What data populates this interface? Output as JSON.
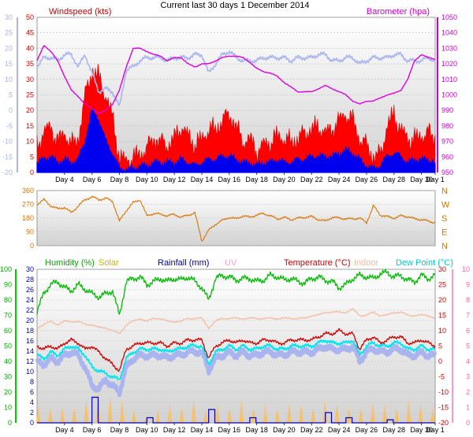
{
  "title": "Current last 30 days 1 December 2014",
  "x_ticks": [
    "Day 4",
    "Day 6",
    "Day 8",
    "Day 10",
    "Day 12",
    "Day 14",
    "Day 16",
    "Day 18",
    "Day 20",
    "Day 22",
    "Day 24",
    "Day 26",
    "Day 28",
    "Day 30",
    "Day 1"
  ],
  "colors": {
    "windspeed": "#dd0000",
    "wind_gust": "#ff0000",
    "wind_avg": "#0000ee",
    "temp_left_axis": "#aab4ee",
    "barometer": "#dd00dd",
    "direction": "#d97400",
    "humidity": "#00bb00",
    "solar": "#d4c400",
    "rainfall": "#0000aa",
    "uv": "#ff99cc",
    "temperature": "#cc0000",
    "indoor": "#f5b89a",
    "dewpoint": "#00e5ee",
    "apparent": "#aab4ee"
  },
  "chart_data": [
    {
      "type": "line",
      "panel": "wind-barometer",
      "series_labels": {
        "wind": "Windspeed (kts)",
        "baro": "Barometer (hpa)"
      },
      "left_axis": {
        "ylim": [
          0,
          50
        ],
        "ticks": [
          "0",
          "5",
          "10",
          "15",
          "20",
          "25",
          "30",
          "35",
          "40",
          "45",
          "50"
        ]
      },
      "far_left_axis": {
        "ylim": [
          -20,
          30
        ],
        "ticks": [
          "-20",
          "-15",
          "-10",
          "-5",
          "0",
          "5",
          "10",
          "15",
          "20",
          "25",
          "30"
        ]
      },
      "right_axis": {
        "ylim": [
          950,
          1050
        ],
        "ticks": [
          "950",
          "960",
          "970",
          "980",
          "990",
          "1000",
          "1010",
          "1020",
          "1030",
          "1040",
          "1050"
        ]
      },
      "x_range": [
        2,
        31
      ],
      "x": [
        2,
        2.5,
        3,
        3.5,
        4,
        4.5,
        5,
        5.5,
        6,
        6.5,
        7,
        7.5,
        8,
        8.5,
        9,
        9.5,
        10,
        10.5,
        11,
        11.5,
        12,
        12.5,
        13,
        13.5,
        14,
        14.5,
        15,
        15.5,
        16,
        16.5,
        17,
        17.5,
        18,
        18.5,
        19,
        19.5,
        20,
        20.5,
        21,
        21.5,
        22,
        22.5,
        23,
        23.5,
        24,
        24.5,
        25,
        25.5,
        26,
        26.5,
        27,
        27.5,
        28,
        28.5,
        29,
        29.5,
        30,
        30.5,
        31
      ],
      "wind_gust": [
        8,
        12,
        14,
        9,
        12,
        8,
        10,
        24,
        32,
        30,
        24,
        17,
        4,
        3,
        4,
        5,
        7,
        10,
        9,
        8,
        10,
        14,
        11,
        8,
        10,
        13,
        13,
        16,
        18,
        14,
        9,
        10,
        6,
        8,
        9,
        11,
        10,
        9,
        10,
        12,
        13,
        14,
        12,
        13,
        16,
        18,
        16,
        10,
        8,
        4,
        5,
        14,
        18,
        13,
        10,
        10,
        11,
        12,
        10
      ],
      "wind_avg": [
        3,
        4,
        5,
        3,
        4,
        3,
        4,
        10,
        20,
        17,
        10,
        6,
        1,
        1,
        1,
        2,
        2,
        3,
        3,
        3,
        3,
        4,
        3,
        2,
        3,
        4,
        4,
        5,
        5,
        4,
        3,
        3,
        2,
        3,
        3,
        4,
        3,
        3,
        4,
        4,
        5,
        5,
        5,
        5,
        6,
        7,
        6,
        4,
        2,
        1,
        2,
        5,
        6,
        5,
        3,
        4,
        4,
        4,
        3
      ],
      "temp_line": [
        14,
        17,
        17,
        16,
        18,
        18,
        14,
        18,
        12,
        6,
        7,
        6,
        1,
        13,
        14,
        16,
        17,
        17,
        17,
        16,
        17,
        17,
        17,
        18,
        18,
        12,
        15,
        18,
        19,
        17,
        16,
        16,
        16,
        17,
        17,
        17,
        17,
        16,
        17,
        17,
        17,
        18,
        18,
        16,
        16,
        17,
        17,
        15,
        16,
        17,
        17,
        17,
        18,
        18,
        16,
        16,
        16,
        17,
        16
      ],
      "barometer": [
        1022,
        1032,
        1028,
        1022,
        1012,
        1003,
        999,
        994,
        991,
        988,
        990,
        994,
        1003,
        1018,
        1030,
        1030,
        1028,
        1026,
        1025,
        1022,
        1024,
        1024,
        1020,
        1018,
        1020,
        1020,
        1022,
        1024,
        1025,
        1025,
        1024,
        1021,
        1017,
        1015,
        1014,
        1012,
        1008,
        1005,
        1002,
        1002,
        1002,
        1004,
        1006,
        1004,
        1002,
        1000,
        996,
        994,
        996,
        996,
        998,
        1000,
        1001,
        1003,
        1010,
        1022,
        1026,
        1024,
        1023
      ]
    },
    {
      "type": "scatter",
      "panel": "wind-direction",
      "ylim": [
        0,
        360
      ],
      "left_ticks": [
        "0",
        "90",
        "180",
        "270",
        "360"
      ],
      "right_ticks": [
        "N",
        "W",
        "S",
        "E",
        "N"
      ],
      "x": [
        2,
        2.5,
        3,
        3.5,
        4,
        4.5,
        5,
        5.5,
        6,
        6.5,
        7,
        7.5,
        8,
        8.5,
        9,
        9.5,
        10,
        10.5,
        11,
        11.5,
        12,
        12.5,
        13,
        13.5,
        14,
        14.5,
        15,
        15.5,
        16,
        16.5,
        17,
        17.5,
        18,
        18.5,
        19,
        19.5,
        20,
        20.5,
        21,
        21.5,
        22,
        22.5,
        23,
        23.5,
        24,
        24.5,
        25,
        25.5,
        26,
        26.5,
        27,
        27.5,
        28,
        28.5,
        29,
        29.5,
        30,
        30.5,
        31
      ],
      "direction": [
        270,
        300,
        260,
        240,
        250,
        215,
        260,
        300,
        320,
        300,
        310,
        290,
        160,
        230,
        280,
        300,
        195,
        210,
        205,
        195,
        205,
        185,
        200,
        215,
        30,
        100,
        140,
        165,
        185,
        175,
        195,
        185,
        200,
        210,
        195,
        175,
        185,
        170,
        180,
        185,
        190,
        170,
        160,
        185,
        180,
        175,
        175,
        180,
        150,
        260,
        200,
        190,
        180,
        195,
        190,
        175,
        170,
        160,
        150
      ]
    },
    {
      "type": "line",
      "panel": "climate",
      "series_labels": {
        "humidity": "Humidity (%)",
        "solar": "Solar",
        "rainfall": "Rainfall (mm)",
        "uv": "UV",
        "temperature": "Temperature (°C)",
        "indoor": "Indoor",
        "dewpoint": "Dew Point (°C)"
      },
      "humidity_axis": {
        "ylim": [
          0,
          100
        ],
        "ticks": [
          "0",
          "10",
          "20",
          "30",
          "40",
          "50",
          "60",
          "70",
          "80",
          "90",
          "100"
        ]
      },
      "rain_axis": {
        "ylim": [
          0,
          30
        ],
        "ticks": [
          "0",
          "2",
          "4",
          "6",
          "8",
          "10",
          "12",
          "14",
          "16",
          "18",
          "20",
          "22",
          "24",
          "26",
          "28",
          "30"
        ]
      },
      "temp_right_axis": {
        "ylim": [
          -20,
          30
        ],
        "ticks": [
          "-20",
          "-15",
          "-10",
          "-5",
          "0",
          "5",
          "10",
          "15",
          "20",
          "25",
          "30"
        ]
      },
      "uv_axis": {
        "ylim": [
          0,
          10
        ],
        "ticks": [
          "0",
          "1",
          "2",
          "3",
          "4",
          "5",
          "6",
          "7",
          "8",
          "9",
          "10"
        ]
      },
      "x": [
        2,
        2.5,
        3,
        3.5,
        4,
        4.5,
        5,
        5.5,
        6,
        6.5,
        7,
        7.5,
        8,
        8.5,
        9,
        9.5,
        10,
        10.5,
        11,
        11.5,
        12,
        12.5,
        13,
        13.5,
        14,
        14.5,
        15,
        15.5,
        16,
        16.5,
        17,
        17.5,
        18,
        18.5,
        19,
        19.5,
        20,
        20.5,
        21,
        21.5,
        22,
        22.5,
        23,
        23.5,
        24,
        24.5,
        25,
        25.5,
        26,
        26.5,
        27,
        27.5,
        28,
        28.5,
        29,
        29.5,
        30,
        30.5,
        31
      ],
      "humidity": [
        72,
        85,
        90,
        92,
        88,
        86,
        90,
        87,
        84,
        82,
        84,
        86,
        70,
        92,
        94,
        95,
        90,
        92,
        94,
        92,
        94,
        93,
        95,
        92,
        88,
        80,
        94,
        96,
        95,
        93,
        94,
        94,
        92,
        93,
        96,
        95,
        93,
        94,
        92,
        91,
        94,
        95,
        93,
        92,
        88,
        90,
        94,
        96,
        95,
        94,
        97,
        98,
        95,
        96,
        93,
        92,
        96,
        94,
        96
      ],
      "temperature": [
        5,
        4,
        5,
        4,
        6,
        7,
        6,
        4,
        5,
        3,
        1,
        -1,
        -3,
        4,
        5,
        6,
        6,
        6,
        6,
        5,
        6,
        6,
        7,
        7,
        7,
        1,
        5,
        6,
        7,
        6,
        7,
        6,
        6,
        7,
        7,
        6,
        6,
        7,
        7,
        7,
        7,
        8,
        9,
        9,
        10,
        9,
        9,
        4,
        7,
        8,
        6,
        7,
        8,
        8,
        6,
        6,
        7,
        6,
        5
      ],
      "dewpoint": [
        2,
        1,
        3,
        2,
        4,
        5,
        4,
        2,
        -2,
        -3,
        -4,
        -5,
        -6,
        1,
        3,
        4,
        4,
        4,
        4,
        3,
        4,
        4,
        5,
        5,
        5,
        -1,
        3,
        4,
        5,
        4,
        5,
        4,
        4,
        5,
        5,
        4,
        4,
        5,
        5,
        5,
        5,
        6,
        7,
        6,
        6,
        6,
        7,
        2,
        5,
        6,
        5,
        5,
        6,
        6,
        4,
        4,
        5,
        4,
        4
      ],
      "apparent": [
        0,
        -1,
        1,
        0,
        2,
        3,
        2,
        -2,
        -8,
        -9,
        -6,
        -8,
        -10,
        -2,
        1,
        2,
        2,
        2,
        2,
        1,
        2,
        2,
        3,
        3,
        3,
        -3,
        1,
        2,
        3,
        2,
        3,
        2,
        2,
        3,
        3,
        2,
        2,
        3,
        3,
        3,
        3,
        4,
        5,
        4,
        4,
        4,
        5,
        0,
        3,
        4,
        3,
        3,
        4,
        4,
        2,
        2,
        3,
        2,
        2
      ],
      "indoor": [
        11,
        12,
        13,
        12,
        13,
        13,
        13,
        12,
        12,
        11,
        11,
        10,
        9,
        12,
        13,
        14,
        13,
        14,
        14,
        13,
        13,
        13,
        14,
        14,
        14,
        11,
        13,
        14,
        14,
        14,
        14,
        14,
        14,
        14,
        14,
        14,
        14,
        14,
        14,
        14,
        15,
        15,
        16,
        16,
        16,
        16,
        17,
        15,
        15,
        16,
        15,
        15,
        16,
        16,
        15,
        15,
        15,
        15,
        14
      ],
      "rainfall": [
        0,
        0,
        0,
        0,
        0,
        0,
        0,
        0,
        5,
        0,
        0,
        0,
        0,
        0,
        0,
        0,
        1,
        0,
        0,
        0,
        0,
        0,
        0,
        0,
        0,
        2.6,
        0,
        0,
        0,
        0,
        0,
        1,
        0,
        0,
        0,
        0,
        0,
        0,
        0,
        0,
        0,
        0,
        2,
        0,
        0,
        1,
        0,
        0,
        0,
        0,
        0,
        0.6,
        0,
        0,
        0,
        0,
        0,
        0,
        0
      ],
      "solar_peaks": [
        1,
        1,
        1,
        1,
        1.5,
        2,
        1.8,
        1.5,
        0.8,
        0.3,
        0.8,
        1.2,
        1,
        1.5,
        0.8,
        1.2,
        1,
        1.5,
        1,
        1.2,
        1,
        1.3,
        1.2,
        1,
        1.5,
        1.2,
        1,
        1,
        1.3,
        1.2,
        1,
        1.5,
        1.2,
        1
      ]
    }
  ]
}
